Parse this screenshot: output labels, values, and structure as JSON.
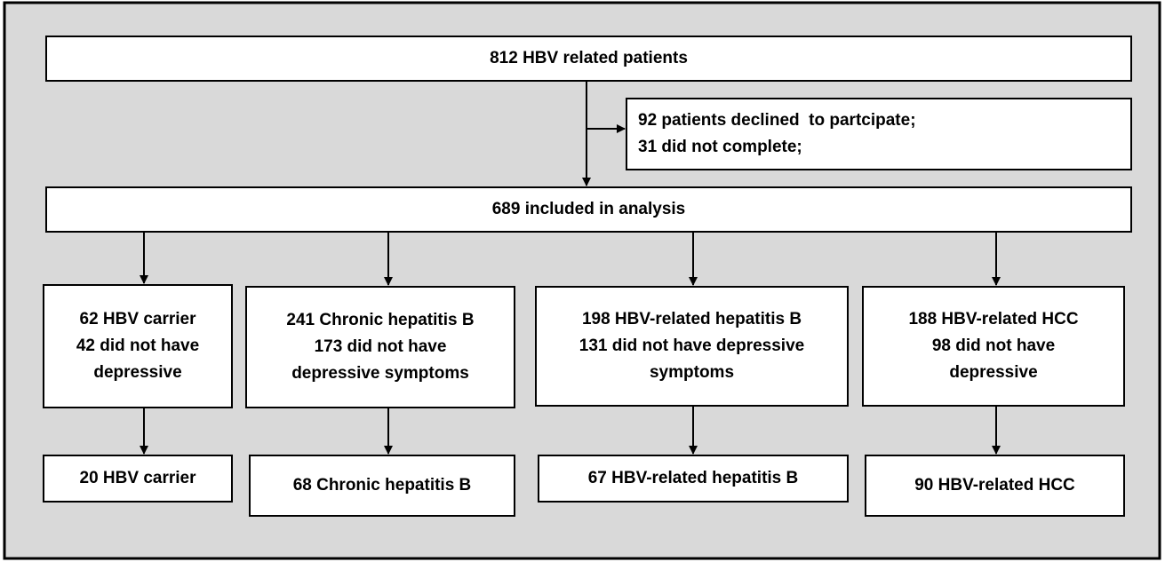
{
  "nodes": [
    {
      "lines": [
        "812 HBV related patients"
      ]
    },
    {
      "lines": [
        "92 patients declined  to partcipate;",
        "31 did not complete;"
      ]
    },
    {
      "lines": [
        "689 included in analysis"
      ]
    },
    {
      "lines": [
        "62 HBV carrier",
        "42 did not have",
        "depressive"
      ]
    },
    {
      "lines": [
        "241 Chronic hepatitis B",
        "173 did not have",
        "depressive symptoms"
      ]
    },
    {
      "lines": [
        "198 HBV-related hepatitis B",
        "131 did not have depressive",
        "symptoms"
      ]
    },
    {
      "lines": [
        "188 HBV-related HCC",
        "98 did not have",
        "depressive"
      ]
    },
    {
      "lines": [
        "20 HBV carrier"
      ]
    },
    {
      "lines": [
        "68 Chronic hepatitis B"
      ]
    },
    {
      "lines": [
        "67 HBV-related hepatitis B"
      ]
    },
    {
      "lines": [
        "90 HBV-related HCC"
      ]
    }
  ]
}
